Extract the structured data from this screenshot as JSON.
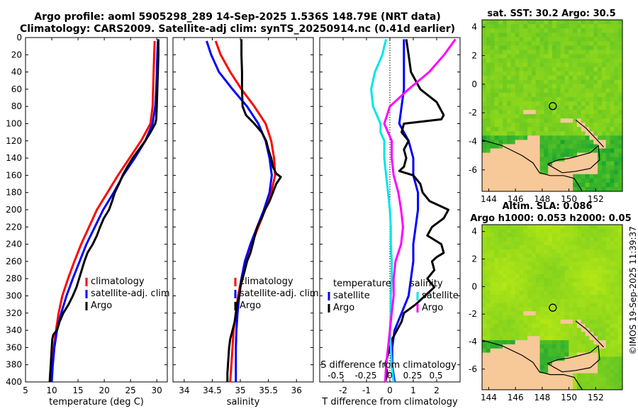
{
  "titles": {
    "line1": "Argo profile: aoml 5905298_289 14-Sep-2025 1.536S 148.79E (NRT data)",
    "line2": "Climatology: CARS2009. Satellite-adj clim: synTS_20250914.nc (0.41d earlier)"
  },
  "credit": "©IMOS 19-Sep-2025 11:39:37",
  "colors": {
    "climatology": "#ff0000",
    "satellite": "#0000ff",
    "argo": "#000000",
    "cyan": "#00e5e5",
    "magenta": "#ff00ff",
    "land": "#f7c898",
    "coast": "#000000"
  },
  "chart_data": [
    {
      "id": "temperature",
      "type": "line",
      "xlabel": "temperature (deg C)",
      "ylabel": "",
      "xlim": [
        5,
        32
      ],
      "ylim": [
        400,
        0
      ],
      "xticks": [
        5,
        10,
        15,
        20,
        25,
        30
      ],
      "yticks": [
        0,
        20,
        40,
        60,
        80,
        100,
        120,
        140,
        160,
        180,
        200,
        220,
        240,
        260,
        280,
        300,
        320,
        340,
        360,
        380,
        400
      ],
      "legend": [
        "climatology",
        "satellite-adj. clim",
        "Argo"
      ],
      "series": [
        {
          "name": "climatology",
          "color": "#ff0000",
          "depth": [
            4,
            20,
            40,
            60,
            80,
            100,
            120,
            140,
            160,
            180,
            200,
            220,
            240,
            260,
            280,
            300,
            320,
            340,
            360,
            380,
            400
          ],
          "values": [
            29.6,
            29.5,
            29.4,
            29.3,
            29.2,
            28.8,
            27.0,
            24.8,
            22.6,
            20.6,
            18.6,
            17.1,
            15.6,
            14.3,
            13.1,
            12.0,
            11.3,
            10.8,
            10.4,
            10.1,
            9.8
          ]
        },
        {
          "name": "satellite-adj. clim",
          "color": "#0000ff",
          "depth": [
            4,
            20,
            40,
            60,
            80,
            100,
            120,
            140,
            160,
            180,
            200,
            220,
            240,
            260,
            280,
            300,
            320,
            340,
            360,
            380,
            400
          ],
          "values": [
            30.2,
            30.1,
            30.0,
            29.9,
            29.7,
            29.2,
            27.8,
            25.8,
            23.6,
            21.8,
            19.8,
            18.2,
            16.6,
            15.3,
            14.0,
            12.8,
            11.8,
            11.0,
            10.5,
            10.2,
            10.0
          ]
        },
        {
          "name": "Argo",
          "color": "#000000",
          "depth": [
            2,
            20,
            40,
            60,
            80,
            95,
            100,
            110,
            120,
            130,
            140,
            150,
            160,
            170,
            180,
            190,
            200,
            210,
            220,
            230,
            240,
            250,
            260,
            270,
            280,
            290,
            300,
            310,
            320,
            330,
            340,
            345,
            350,
            360,
            370,
            380,
            390,
            400
          ],
          "values": [
            30.3,
            30.3,
            30.2,
            30.1,
            30.0,
            29.9,
            29.7,
            28.8,
            27.8,
            26.6,
            25.4,
            24.4,
            23.5,
            22.8,
            22.0,
            21.5,
            20.9,
            19.9,
            19.2,
            18.6,
            17.8,
            16.8,
            16.2,
            15.7,
            15.2,
            14.7,
            14.0,
            13.2,
            12.2,
            11.5,
            11.0,
            10.3,
            10.1,
            10.0,
            9.9,
            9.8,
            9.7,
            9.6
          ]
        }
      ]
    },
    {
      "id": "salinity",
      "type": "line",
      "xlabel": "salinity",
      "ylabel": "",
      "xlim": [
        33.8,
        36.3
      ],
      "ylim": [
        400,
        0
      ],
      "xticks": [
        34,
        34.5,
        35,
        35.5,
        36
      ],
      "legend": [
        "climatology",
        "satellite-adj. clim",
        "Argo"
      ],
      "series": [
        {
          "name": "climatology",
          "color": "#ff0000",
          "depth": [
            4,
            20,
            40,
            60,
            80,
            100,
            120,
            140,
            160,
            180,
            200,
            220,
            240,
            260,
            280,
            300,
            320,
            340,
            360,
            380,
            400
          ],
          "values": [
            34.56,
            34.65,
            34.82,
            35.02,
            35.25,
            35.45,
            35.55,
            35.6,
            35.62,
            35.55,
            35.44,
            35.32,
            35.2,
            35.1,
            35.02,
            34.96,
            34.92,
            34.88,
            34.86,
            34.84,
            34.82
          ]
        },
        {
          "name": "satellite-adj. clim",
          "color": "#0000ff",
          "depth": [
            4,
            20,
            40,
            60,
            80,
            100,
            120,
            140,
            160,
            180,
            200,
            220,
            240,
            260,
            280,
            300,
            320,
            340,
            360,
            380,
            400
          ],
          "values": [
            34.4,
            34.48,
            34.62,
            34.86,
            35.12,
            35.32,
            35.45,
            35.52,
            35.56,
            35.52,
            35.42,
            35.3,
            35.18,
            35.08,
            35.02,
            34.98,
            34.95,
            34.93,
            34.92,
            34.92,
            34.92
          ]
        },
        {
          "name": "Argo",
          "color": "#000000",
          "depth": [
            2,
            20,
            40,
            60,
            80,
            90,
            100,
            110,
            120,
            130,
            140,
            150,
            158,
            162,
            170,
            180,
            190,
            200,
            210,
            220,
            230,
            240,
            250,
            260,
            270,
            280,
            290,
            300,
            310,
            320,
            330,
            340,
            350,
            360,
            370,
            380,
            390,
            400
          ],
          "values": [
            35.02,
            35.02,
            35.03,
            35.03,
            35.04,
            35.1,
            35.25,
            35.38,
            35.46,
            35.5,
            35.55,
            35.58,
            35.64,
            35.72,
            35.64,
            35.58,
            35.52,
            35.44,
            35.38,
            35.3,
            35.26,
            35.22,
            35.18,
            35.12,
            35.08,
            35.04,
            35.0,
            34.98,
            34.94,
            34.92,
            34.9,
            34.86,
            34.82,
            34.8,
            34.79,
            34.78,
            34.77,
            34.77
          ]
        }
      ]
    },
    {
      "id": "differences",
      "type": "line",
      "xlabel": "T difference from climatology",
      "xlabel2": "S difference from climatology",
      "xlim": [
        -3,
        3
      ],
      "xlim_salinity": [
        -0.75,
        0.75
      ],
      "ylim": [
        400,
        0
      ],
      "xticks": [
        -2,
        -1,
        0,
        1,
        2
      ],
      "xticks_salinity": [
        "-0.5",
        "-0.25",
        "0",
        "0.25",
        "0.5"
      ],
      "legend_temperature_title": "temperature",
      "legend_salinity_title": "salinity",
      "legend_temperature": [
        "satellite",
        "Argo"
      ],
      "legend_salinity": [
        "satellite",
        "Argo"
      ],
      "series": [
        {
          "name": "T satellite",
          "color": "#0000ff",
          "scale": "T",
          "depth": [
            2,
            20,
            40,
            60,
            80,
            100,
            120,
            140,
            160,
            180,
            200,
            220,
            240,
            260,
            280,
            300,
            320,
            340,
            360,
            380,
            400
          ],
          "values": [
            0.6,
            0.6,
            0.6,
            0.6,
            0.5,
            0.4,
            0.8,
            1.0,
            1.0,
            1.2,
            1.2,
            1.1,
            1.0,
            1.0,
            0.9,
            0.8,
            0.5,
            0.2,
            0.1,
            0.1,
            0.2
          ]
        },
        {
          "name": "T Argo",
          "color": "#000000",
          "scale": "T",
          "depth": [
            2,
            20,
            40,
            60,
            75,
            90,
            95,
            100,
            110,
            120,
            130,
            140,
            150,
            155,
            160,
            170,
            180,
            190,
            200,
            210,
            220,
            230,
            240,
            250,
            255,
            260,
            270,
            280,
            290,
            300,
            310,
            320,
            330,
            340,
            350,
            360,
            370,
            380,
            390,
            400
          ],
          "values": [
            0.7,
            0.8,
            0.9,
            1.3,
            2.0,
            2.3,
            2.2,
            0.6,
            0.5,
            0.8,
            0.6,
            0.7,
            0.6,
            0.4,
            1.0,
            1.3,
            1.4,
            1.7,
            2.5,
            2.3,
            1.8,
            1.6,
            2.2,
            2.3,
            2.0,
            1.8,
            1.9,
            1.6,
            1.9,
            1.5,
            1.1,
            0.6,
            0.5,
            0.3,
            0.1,
            0.0,
            -0.1,
            -0.2,
            -0.1,
            -0.2
          ]
        },
        {
          "name": "S satellite",
          "color": "#00e5e5",
          "scale": "S",
          "depth": [
            2,
            10,
            20,
            40,
            60,
            80,
            100,
            110,
            120,
            140,
            160,
            180,
            200,
            220,
            240,
            260,
            280,
            300,
            320,
            340,
            360,
            380,
            400
          ],
          "values": [
            -0.04,
            -0.06,
            -0.08,
            -0.16,
            -0.2,
            -0.18,
            -0.1,
            -0.1,
            -0.06,
            -0.06,
            -0.04,
            -0.02,
            0.0,
            0.01,
            0.01,
            0.02,
            0.02,
            0.01,
            0.01,
            0.0,
            0.01,
            0.02,
            0.04
          ]
        },
        {
          "name": "S Argo",
          "color": "#ff00ff",
          "scale": "S",
          "depth": [
            2,
            20,
            40,
            60,
            80,
            100,
            120,
            140,
            160,
            180,
            200,
            220,
            240,
            260,
            280,
            300,
            320,
            340,
            360,
            380,
            400
          ],
          "values": [
            0.7,
            0.58,
            0.42,
            0.2,
            0.0,
            -0.06,
            0.02,
            0.02,
            0.04,
            0.09,
            0.12,
            0.14,
            0.12,
            0.06,
            0.04,
            0.04,
            0.02,
            0.0,
            -0.02,
            -0.04,
            -0.05
          ]
        }
      ]
    },
    {
      "id": "sst-map",
      "type": "heatmap",
      "title": "sat. SST: 30.2 Argo: 30.5",
      "xlim": [
        143.5,
        154
      ],
      "ylim": [
        -7.5,
        4.5
      ],
      "xticks": [
        144,
        146,
        148,
        150,
        152
      ],
      "yticks": [
        4,
        2,
        0,
        -2,
        -4,
        -6
      ],
      "marker": {
        "lon": 148.79,
        "lat": -1.536
      }
    },
    {
      "id": "sla-map",
      "type": "heatmap",
      "title": "Altim. SLA: 0.086",
      "subtitle": "Argo h1000: 0.053 h2000: 0.05",
      "xlim": [
        143.5,
        154
      ],
      "ylim": [
        -7.5,
        4.5
      ],
      "xticks": [
        144,
        146,
        148,
        150,
        152
      ],
      "yticks": [
        4,
        2,
        0,
        -2,
        -4,
        -6
      ],
      "marker": {
        "lon": 148.79,
        "lat": -1.536
      }
    }
  ]
}
